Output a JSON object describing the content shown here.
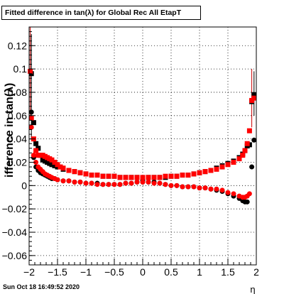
{
  "chart_data": {
    "type": "scatter",
    "title": "Fitted difference in tan(λ) for Global Rec All EtapT",
    "xlabel": "η",
    "ylabel": "ifference in tan(λ)",
    "xlim": [
      -2.0,
      2.0
    ],
    "ylim": [
      -0.068,
      0.136
    ],
    "x_ticks": [
      "−2",
      "−1.5",
      "−1",
      "−0.5",
      "0",
      "0.5",
      "1",
      "1.5",
      "2"
    ],
    "x_tick_values": [
      -2,
      -1.5,
      -1,
      -0.5,
      0,
      0.5,
      1,
      1.5,
      2
    ],
    "y_ticks": [
      "0.12",
      "0.1",
      "0.08",
      "0.06",
      "0.04",
      "0.02",
      "0",
      "−0.02",
      "−0.04",
      "−0.06"
    ],
    "y_tick_values": [
      0.12,
      0.1,
      0.08,
      0.06,
      0.04,
      0.02,
      0,
      -0.02,
      -0.04,
      -0.06
    ],
    "grid": true,
    "series": [
      {
        "color": "#000000",
        "marker": "square",
        "points": [
          [
            -1.96,
            0.096
          ],
          [
            -1.92,
            0.054
          ],
          [
            -1.88,
            0.036
          ],
          [
            -1.84,
            0.032
          ],
          [
            -1.8,
            0.026
          ],
          [
            -1.76,
            0.022
          ],
          [
            -1.72,
            0.021
          ],
          [
            -1.68,
            0.02
          ],
          [
            -1.64,
            0.019
          ],
          [
            -1.6,
            0.018
          ],
          [
            -1.55,
            0.017
          ],
          [
            -1.5,
            0.016
          ],
          [
            -1.4,
            0.014
          ],
          [
            -1.3,
            0.013
          ],
          [
            -1.2,
            0.012
          ],
          [
            -1.1,
            0.011
          ],
          [
            -1.0,
            0.01
          ],
          [
            -0.9,
            0.009
          ],
          [
            -0.8,
            0.009
          ],
          [
            -0.7,
            0.008
          ],
          [
            -0.6,
            0.008
          ],
          [
            -0.5,
            0.008
          ],
          [
            -0.4,
            0.007
          ],
          [
            -0.3,
            0.007
          ],
          [
            -0.2,
            0.007
          ],
          [
            -0.1,
            0.007
          ],
          [
            0.0,
            0.006
          ],
          [
            0.1,
            0.007
          ],
          [
            0.2,
            0.007
          ],
          [
            0.3,
            0.007
          ],
          [
            0.4,
            0.007
          ],
          [
            0.5,
            0.008
          ],
          [
            0.6,
            0.008
          ],
          [
            0.7,
            0.009
          ],
          [
            0.8,
            0.009
          ],
          [
            0.9,
            0.01
          ],
          [
            1.0,
            0.011
          ],
          [
            1.1,
            0.012
          ],
          [
            1.2,
            0.013
          ],
          [
            1.3,
            0.015
          ],
          [
            1.4,
            0.017
          ],
          [
            1.5,
            0.019
          ],
          [
            1.6,
            0.021
          ],
          [
            1.7,
            0.024
          ],
          [
            1.76,
            0.027
          ],
          [
            1.8,
            0.03
          ],
          [
            1.84,
            0.034
          ],
          [
            1.88,
            0.035
          ],
          [
            1.92,
            0.072
          ],
          [
            1.96,
            0.078
          ]
        ]
      },
      {
        "color": "#000000",
        "marker": "circle",
        "points": [
          [
            -1.96,
            0.063
          ],
          [
            -1.92,
            0.024
          ],
          [
            -1.88,
            0.016
          ],
          [
            -1.84,
            0.013
          ],
          [
            -1.8,
            0.011
          ],
          [
            -1.76,
            0.01
          ],
          [
            -1.72,
            0.009
          ],
          [
            -1.68,
            0.008
          ],
          [
            -1.64,
            0.007
          ],
          [
            -1.6,
            0.006
          ],
          [
            -1.55,
            0.006
          ],
          [
            -1.5,
            0.005
          ],
          [
            -1.4,
            0.004
          ],
          [
            -1.3,
            0.004
          ],
          [
            -1.2,
            0.003
          ],
          [
            -1.1,
            0.003
          ],
          [
            -1.0,
            0.002
          ],
          [
            -0.9,
            0.002
          ],
          [
            -0.8,
            0.002
          ],
          [
            -0.7,
            0.001
          ],
          [
            -0.6,
            0.001
          ],
          [
            -0.5,
            0.001
          ],
          [
            -0.4,
            0.001
          ],
          [
            -0.3,
            0.002
          ],
          [
            -0.2,
            0.002
          ],
          [
            -0.1,
            0.003
          ],
          [
            0.0,
            0.003
          ],
          [
            0.1,
            0.003
          ],
          [
            0.2,
            0.003
          ],
          [
            0.3,
            0.002
          ],
          [
            0.4,
            0.001
          ],
          [
            0.5,
            0.0
          ],
          [
            0.6,
            0.0
          ],
          [
            0.7,
            -0.001
          ],
          [
            0.8,
            -0.001
          ],
          [
            0.9,
            -0.001
          ],
          [
            1.0,
            -0.002
          ],
          [
            1.1,
            -0.002
          ],
          [
            1.2,
            -0.003
          ],
          [
            1.3,
            -0.004
          ],
          [
            1.4,
            -0.005
          ],
          [
            1.5,
            -0.007
          ],
          [
            1.6,
            -0.009
          ],
          [
            1.7,
            -0.011
          ],
          [
            1.76,
            -0.013
          ],
          [
            1.8,
            -0.014
          ],
          [
            1.84,
            -0.014
          ],
          [
            1.92,
            0.016
          ],
          [
            1.96,
            0.039
          ]
        ]
      },
      {
        "color": "#ff0000",
        "marker": "square",
        "points": [
          [
            -1.98,
            0.098
          ],
          [
            -1.96,
            0.058
          ],
          [
            -1.92,
            0.04
          ],
          [
            -1.88,
            0.03
          ],
          [
            -1.84,
            0.026
          ],
          [
            -1.8,
            0.026
          ],
          [
            -1.76,
            0.026
          ],
          [
            -1.72,
            0.025
          ],
          [
            -1.68,
            0.024
          ],
          [
            -1.64,
            0.023
          ],
          [
            -1.6,
            0.022
          ],
          [
            -1.55,
            0.02
          ],
          [
            -1.5,
            0.018
          ],
          [
            -1.45,
            0.016
          ],
          [
            -1.4,
            0.015
          ],
          [
            -1.3,
            0.013
          ],
          [
            -1.2,
            0.012
          ],
          [
            -1.1,
            0.011
          ],
          [
            -1.0,
            0.01
          ],
          [
            -0.9,
            0.009
          ],
          [
            -0.8,
            0.009
          ],
          [
            -0.7,
            0.008
          ],
          [
            -0.6,
            0.008
          ],
          [
            -0.5,
            0.008
          ],
          [
            -0.4,
            0.007
          ],
          [
            -0.3,
            0.007
          ],
          [
            -0.2,
            0.007
          ],
          [
            -0.1,
            0.007
          ],
          [
            0.0,
            0.007
          ],
          [
            0.1,
            0.007
          ],
          [
            0.2,
            0.007
          ],
          [
            0.3,
            0.007
          ],
          [
            0.4,
            0.008
          ],
          [
            0.5,
            0.008
          ],
          [
            0.6,
            0.008
          ],
          [
            0.7,
            0.009
          ],
          [
            0.8,
            0.009
          ],
          [
            0.9,
            0.01
          ],
          [
            1.0,
            0.011
          ],
          [
            1.1,
            0.012
          ],
          [
            1.2,
            0.013
          ],
          [
            1.3,
            0.014
          ],
          [
            1.4,
            0.016
          ],
          [
            1.5,
            0.018
          ],
          [
            1.6,
            0.02
          ],
          [
            1.7,
            0.023
          ],
          [
            1.76,
            0.026
          ],
          [
            1.8,
            0.03
          ],
          [
            1.84,
            0.036
          ],
          [
            1.88,
            0.047
          ],
          [
            1.92,
            0.073
          ],
          [
            1.96,
            0.075
          ]
        ]
      },
      {
        "color": "#ff0000",
        "marker": "circle",
        "points": [
          [
            -1.96,
            0.05
          ],
          [
            -1.92,
            0.026
          ],
          [
            -1.88,
            0.02
          ],
          [
            -1.84,
            0.016
          ],
          [
            -1.8,
            0.014
          ],
          [
            -1.76,
            0.012
          ],
          [
            -1.72,
            0.01
          ],
          [
            -1.68,
            0.009
          ],
          [
            -1.64,
            0.008
          ],
          [
            -1.6,
            0.007
          ],
          [
            -1.55,
            0.006
          ],
          [
            -1.5,
            0.005
          ],
          [
            -1.4,
            0.004
          ],
          [
            -1.3,
            0.004
          ],
          [
            -1.2,
            0.003
          ],
          [
            -1.1,
            0.003
          ],
          [
            -1.0,
            0.002
          ],
          [
            -0.9,
            0.002
          ],
          [
            -0.8,
            0.001
          ],
          [
            -0.7,
            0.001
          ],
          [
            -0.6,
            0.001
          ],
          [
            -0.5,
            0.001
          ],
          [
            -0.4,
            0.001
          ],
          [
            -0.3,
            0.002
          ],
          [
            -0.2,
            0.002
          ],
          [
            -0.1,
            0.003
          ],
          [
            0.0,
            0.003
          ],
          [
            0.1,
            0.003
          ],
          [
            0.2,
            0.002
          ],
          [
            0.3,
            0.002
          ],
          [
            0.4,
            0.001
          ],
          [
            0.5,
            0.0
          ],
          [
            0.6,
            0.0
          ],
          [
            0.7,
            -0.001
          ],
          [
            0.8,
            -0.001
          ],
          [
            0.9,
            -0.001
          ],
          [
            1.0,
            -0.002
          ],
          [
            1.1,
            -0.002
          ],
          [
            1.2,
            -0.003
          ],
          [
            1.3,
            -0.003
          ],
          [
            1.4,
            -0.004
          ],
          [
            1.5,
            -0.006
          ],
          [
            1.6,
            -0.007
          ],
          [
            1.7,
            -0.009
          ],
          [
            1.76,
            -0.01
          ],
          [
            1.8,
            -0.01
          ],
          [
            1.84,
            -0.009
          ],
          [
            1.88,
            -0.007
          ]
        ]
      }
    ],
    "error_bars": [
      {
        "x": -1.98,
        "y_low": 0.06,
        "y_high": 0.136,
        "color": "#cc0000"
      },
      {
        "x": -1.96,
        "y_low": 0.04,
        "y_high": 0.13,
        "color": "#000000"
      },
      {
        "x": 1.92,
        "y_low": 0.05,
        "y_high": 0.1,
        "color": "#cc0000"
      },
      {
        "x": 1.96,
        "y_low": 0.06,
        "y_high": 0.098,
        "color": "#000000"
      }
    ]
  },
  "footer": {
    "timestamp": "Sun Oct 18 16:49:52 2020"
  }
}
